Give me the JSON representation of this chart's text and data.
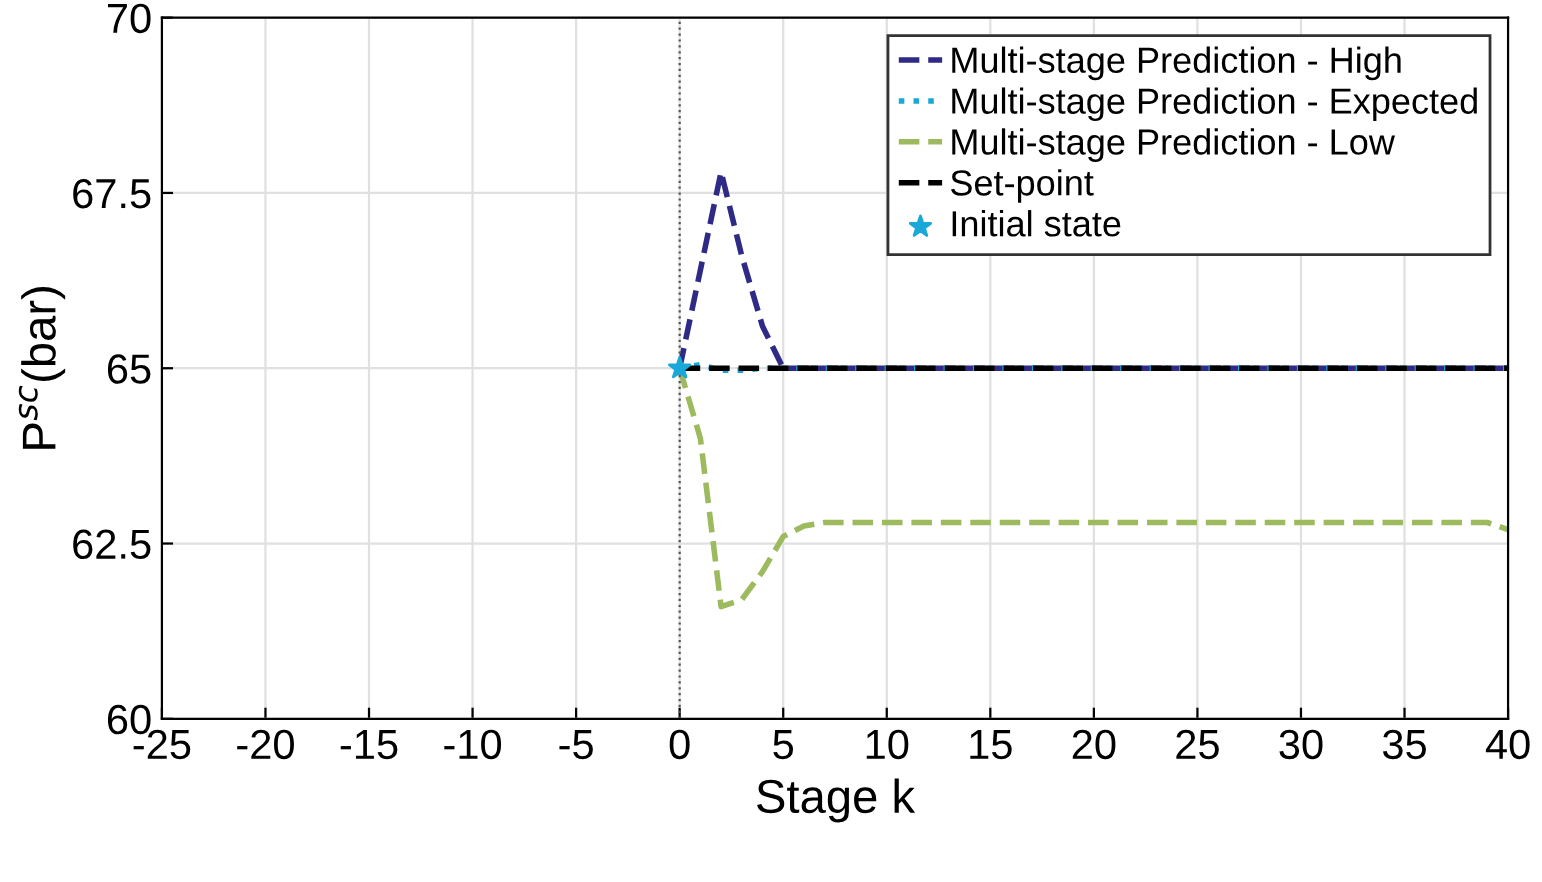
{
  "chart_data": {
    "type": "line",
    "xlabel": "Stage k",
    "ylabel": "P$^{sc}$(bar)",
    "xlim": [
      -25,
      40
    ],
    "xticks": [
      -25,
      -20,
      -15,
      -10,
      -5,
      0,
      5,
      10,
      15,
      20,
      25,
      30,
      35,
      40
    ],
    "ylim": [
      60,
      70
    ],
    "yticks": [
      60,
      62.5,
      65,
      67.5,
      70
    ],
    "grid": true,
    "legend": "top right",
    "ref_lines": [
      {
        "axis": "x",
        "value": 0,
        "color": "#555555",
        "line_style": "dotted"
      }
    ],
    "series": [
      {
        "name": "Multi-stage Prediction - High",
        "color": "#2e2a86",
        "line_style": "dashed",
        "x": [
          0,
          1,
          2,
          3,
          4,
          5,
          10,
          20,
          30,
          40
        ],
        "values": [
          65,
          66.4,
          67.8,
          66.6,
          65.6,
          65,
          65,
          65,
          65,
          65
        ]
      },
      {
        "name": "Multi-stage Prediction - Expected",
        "color": "#1aa8d8",
        "line_style": "dotted",
        "x": [
          0,
          1,
          2,
          3,
          4,
          5,
          10,
          20,
          30,
          40
        ],
        "values": [
          65,
          65.05,
          64.97,
          64.97,
          65,
          65,
          65,
          65,
          65,
          65
        ]
      },
      {
        "name": "Multi-stage Prediction - Low",
        "color": "#9dbb5e",
        "line_style": "dashed",
        "x": [
          0,
          1,
          2,
          3,
          4,
          5,
          6,
          7,
          10,
          20,
          30,
          39,
          40
        ],
        "values": [
          65,
          64.0,
          61.6,
          61.7,
          62.1,
          62.6,
          62.75,
          62.8,
          62.8,
          62.8,
          62.8,
          62.8,
          62.7
        ]
      },
      {
        "name": "Set-point",
        "color": "#000000",
        "line_style": "dashed",
        "x": [
          0,
          40
        ],
        "values": [
          65,
          65
        ]
      },
      {
        "name": "Initial state",
        "type": "scatter",
        "marker": "star",
        "color": "#1aa8d8",
        "x": [
          0
        ],
        "values": [
          65
        ]
      }
    ]
  }
}
